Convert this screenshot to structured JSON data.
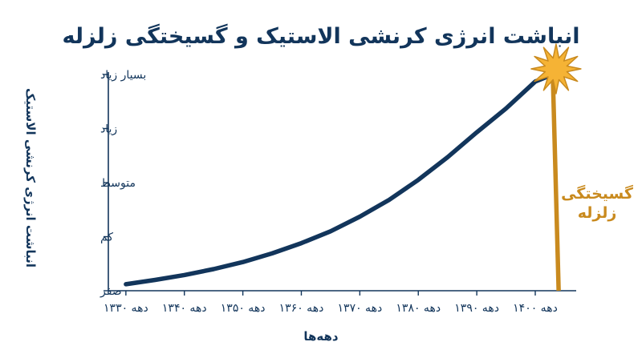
{
  "chart_data": {
    "type": "line",
    "title": "انباشت انرژی کرنشی الاستیک و گسیختگی زلزله",
    "xlabel": "دهه‌ها",
    "ylabel": "انباشت انرژی کرنشی الاستیک",
    "x_ticks": [
      "دهه ۱۳۳۰",
      "دهه ۱۳۴۰",
      "دهه ۱۳۵۰",
      "دهه ۱۳۶۰",
      "دهه ۱۳۷۰",
      "دهه ۱۳۸۰",
      "دهه ۱۳۹۰",
      "دهه ۱۴۰۰"
    ],
    "y_ticks": [
      "صفر",
      "کم",
      "متوسط",
      "زیاد",
      "بسیار زیاد"
    ],
    "xlim": [
      1327,
      1407
    ],
    "ylim": [
      0,
      4
    ],
    "series": [
      {
        "color": "#12355b",
        "x": [
          1330,
          1335,
          1340,
          1345,
          1350,
          1355,
          1360,
          1365,
          1370,
          1375,
          1380,
          1385,
          1390,
          1395,
          1400,
          1403
        ],
        "y": [
          0.12,
          0.2,
          0.29,
          0.4,
          0.53,
          0.69,
          0.88,
          1.1,
          1.37,
          1.68,
          2.05,
          2.47,
          2.93,
          3.37,
          3.87,
          4.0
        ]
      }
    ],
    "rupture": {
      "color": "#c98a1e",
      "x_top": 1403,
      "y_top": 4.0,
      "x_bottom": 1404,
      "y_bottom": 0,
      "label_lines": [
        "گسیختگی",
        "زلزله"
      ]
    },
    "grid": false,
    "legend": "none"
  },
  "colors": {
    "primary": "#12355b",
    "accent": "#c98a1e",
    "star_fill": "#f5b335",
    "star_stroke": "#c98a1e"
  }
}
